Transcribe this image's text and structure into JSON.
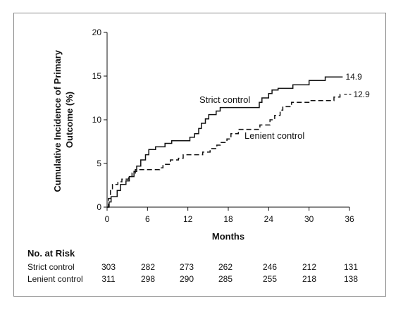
{
  "chart_data": {
    "type": "line",
    "xlabel": "Months",
    "ylabel_lines": [
      "Cumulative Incidence of Primary",
      "Outcome (%)"
    ],
    "xlim": [
      0,
      36
    ],
    "ylim": [
      0,
      20
    ],
    "xticks": [
      0,
      6,
      12,
      18,
      24,
      30,
      36
    ],
    "yticks": [
      0,
      5,
      10,
      15,
      20
    ],
    "grid": false,
    "series": [
      {
        "name": "Strict control",
        "line_style": "solid",
        "end_label": "14.9",
        "steps": [
          [
            0,
            0
          ],
          [
            0.3,
            0.6
          ],
          [
            0.6,
            1.2
          ],
          [
            1.5,
            1.9
          ],
          [
            2.0,
            2.6
          ],
          [
            2.8,
            3.0
          ],
          [
            3.3,
            3.5
          ],
          [
            4.0,
            4.1
          ],
          [
            4.4,
            4.7
          ],
          [
            5.0,
            5.4
          ],
          [
            5.7,
            6.0
          ],
          [
            6.2,
            6.6
          ],
          [
            7.2,
            6.9
          ],
          [
            8.6,
            7.3
          ],
          [
            9.6,
            7.6
          ],
          [
            12.3,
            8.0
          ],
          [
            13.0,
            8.4
          ],
          [
            13.6,
            9.0
          ],
          [
            14.0,
            9.6
          ],
          [
            14.6,
            10.1
          ],
          [
            15.1,
            10.6
          ],
          [
            16.2,
            11.0
          ],
          [
            16.8,
            11.4
          ],
          [
            22.6,
            12.0
          ],
          [
            23.0,
            12.5
          ],
          [
            24.0,
            13.0
          ],
          [
            24.5,
            13.4
          ],
          [
            25.4,
            13.6
          ],
          [
            27.6,
            14.0
          ],
          [
            30.0,
            14.5
          ],
          [
            32.4,
            14.9
          ],
          [
            35.0,
            14.9
          ]
        ]
      },
      {
        "name": "Lenient control",
        "line_style": "dashed",
        "end_label": "12.9",
        "steps": [
          [
            0,
            0
          ],
          [
            0.2,
            1.0
          ],
          [
            0.5,
            2.0
          ],
          [
            0.8,
            2.6
          ],
          [
            1.6,
            2.9
          ],
          [
            2.2,
            3.2
          ],
          [
            3.2,
            3.5
          ],
          [
            3.7,
            3.9
          ],
          [
            4.2,
            4.3
          ],
          [
            7.8,
            4.5
          ],
          [
            8.3,
            4.9
          ],
          [
            9.4,
            5.4
          ],
          [
            10.6,
            5.6
          ],
          [
            11.3,
            6.0
          ],
          [
            14.2,
            6.3
          ],
          [
            15.3,
            6.7
          ],
          [
            16.3,
            7.1
          ],
          [
            16.8,
            7.4
          ],
          [
            17.8,
            7.8
          ],
          [
            18.4,
            8.4
          ],
          [
            19.5,
            8.9
          ],
          [
            22.7,
            9.4
          ],
          [
            24.2,
            10.0
          ],
          [
            24.9,
            10.5
          ],
          [
            25.7,
            11.1
          ],
          [
            26.1,
            11.5
          ],
          [
            27.4,
            12.0
          ],
          [
            30.2,
            12.2
          ],
          [
            33.7,
            12.6
          ],
          [
            34.6,
            12.9
          ],
          [
            35.0,
            12.9
          ]
        ]
      }
    ],
    "risk_table": {
      "title": "No. at Risk",
      "rows": [
        {
          "name": "Strict control",
          "values": [
            "303",
            "282",
            "273",
            "262",
            "246",
            "212",
            "131"
          ]
        },
        {
          "name": "Lenient control",
          "values": [
            "311",
            "298",
            "290",
            "285",
            "255",
            "218",
            "138"
          ]
        }
      ]
    }
  }
}
